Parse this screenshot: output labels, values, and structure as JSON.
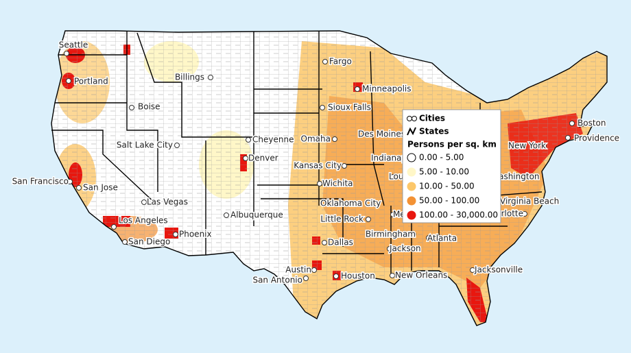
{
  "map": {
    "cities": [
      "Seattle",
      "Portland",
      "Boise",
      "Billings",
      "Fargo",
      "Minneapolis",
      "Sioux Falls",
      "Salt Lake City",
      "Cheyenne",
      "Omaha",
      "Des Moines",
      "Denver",
      "Kansas City",
      "San Francisco",
      "San Jose",
      "Las Vegas",
      "Wichita",
      "Oklahoma City",
      "Albuquerque",
      "Little Rock",
      "Los Angeles",
      "Phoenix",
      "San Diego",
      "Dallas",
      "Birmingham",
      "Atlanta",
      "Jackson",
      "Austin",
      "Houston",
      "San Antonio",
      "New Orleans",
      "Jacksonville",
      "Boston",
      "Providence",
      "New York",
      "Washington",
      "Indianapolis",
      "Louisville",
      "Memphis",
      "Virginia Beach",
      "Charlotte"
    ]
  },
  "legend": {
    "items": [
      "Cities",
      "States"
    ],
    "title": "Persons per sq. km",
    "classes": [
      {
        "label": "0.00 - 5.00",
        "color": "#ffffff"
      },
      {
        "label": "5.00 - 10.00",
        "color": "#fff7c8"
      },
      {
        "label": "10.00 - 50.00",
        "color": "#fcc76a"
      },
      {
        "label": "50.00 - 100.00",
        "color": "#f39235"
      },
      {
        "label": "100.00 - 30,000.00",
        "color": "#e8170f"
      }
    ]
  }
}
